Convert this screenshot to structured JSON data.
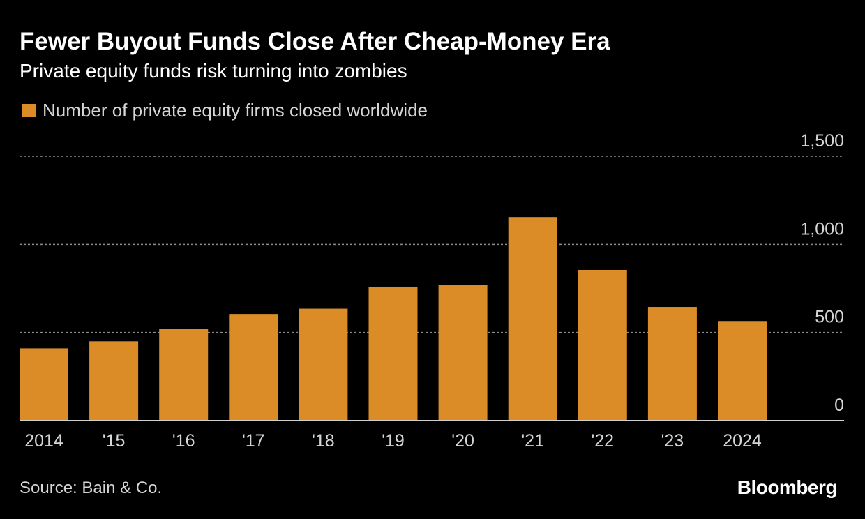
{
  "header": {
    "title": "Fewer Buyout Funds Close After Cheap-Money Era",
    "subtitle": "Private equity funds risk turning into zombies"
  },
  "footer": {
    "source": "Source: Bain & Co.",
    "brand": "Bloomberg"
  },
  "colors": {
    "bar": "#dc8c27",
    "background": "#000000",
    "grid": "#8a8a8a",
    "axis_text": "#d6d6d6"
  },
  "chart_data": {
    "type": "bar",
    "title": "Fewer Buyout Funds Close After Cheap-Money Era",
    "subtitle": "Private equity funds risk turning into zombies",
    "categories": [
      "2014",
      "'15",
      "'16",
      "'17",
      "'18",
      "'19",
      "'20",
      "'21",
      "'22",
      "'23",
      "2024"
    ],
    "series": [
      {
        "name": "Number of private equity firms closed worldwide",
        "values": [
          410,
          450,
          520,
          605,
          635,
          760,
          770,
          1155,
          855,
          645,
          565
        ]
      }
    ],
    "y_ticks": [
      0,
      500,
      1000,
      1500
    ],
    "y_tick_labels": [
      "0",
      "500",
      "1,000",
      "1,500"
    ],
    "ylim": [
      0,
      1500
    ],
    "grid": true,
    "y_axis_position": "right",
    "legend_position": "top-left"
  }
}
